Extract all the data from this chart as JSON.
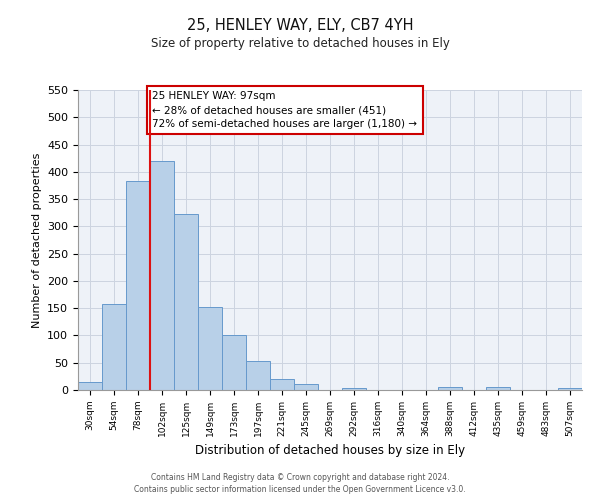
{
  "title": "25, HENLEY WAY, ELY, CB7 4YH",
  "subtitle": "Size of property relative to detached houses in Ely",
  "xlabel": "Distribution of detached houses by size in Ely",
  "ylabel": "Number of detached properties",
  "bar_labels": [
    "30sqm",
    "54sqm",
    "78sqm",
    "102sqm",
    "125sqm",
    "149sqm",
    "173sqm",
    "197sqm",
    "221sqm",
    "245sqm",
    "269sqm",
    "292sqm",
    "316sqm",
    "340sqm",
    "364sqm",
    "388sqm",
    "412sqm",
    "435sqm",
    "459sqm",
    "483sqm",
    "507sqm"
  ],
  "bar_values": [
    15,
    157,
    383,
    420,
    322,
    153,
    100,
    54,
    20,
    11,
    0,
    4,
    0,
    0,
    0,
    5,
    0,
    5,
    0,
    0,
    4
  ],
  "bar_color": "#b8d0e8",
  "bar_edge_color": "#6699cc",
  "vline_color": "#dd1111",
  "ylim": [
    0,
    550
  ],
  "yticks": [
    0,
    50,
    100,
    150,
    200,
    250,
    300,
    350,
    400,
    450,
    500,
    550
  ],
  "annotation_title": "25 HENLEY WAY: 97sqm",
  "annotation_line1": "← 28% of detached houses are smaller (451)",
  "annotation_line2": "72% of semi-detached houses are larger (1,180) →",
  "annotation_box_facecolor": "#ffffff",
  "annotation_box_edgecolor": "#cc0000",
  "footer1": "Contains HM Land Registry data © Crown copyright and database right 2024.",
  "footer2": "Contains public sector information licensed under the Open Government Licence v3.0.",
  "bg_color": "#eef2f8",
  "grid_color": "#ccd4e0"
}
